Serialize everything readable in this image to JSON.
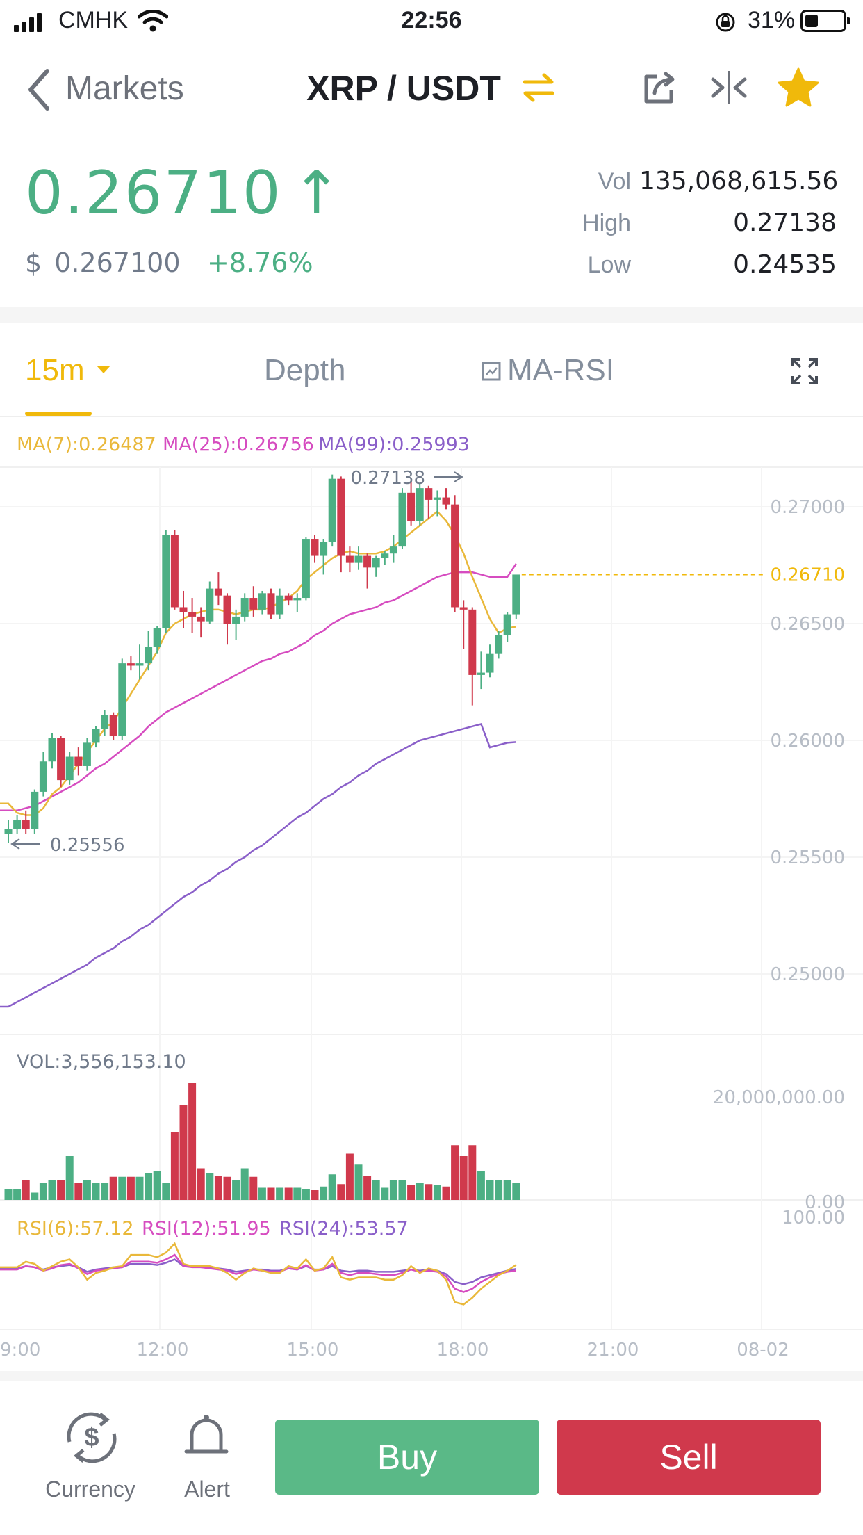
{
  "status_bar": {
    "carrier": "CMHK",
    "time": "22:56",
    "battery": "31%"
  },
  "nav": {
    "back_label": "Markets",
    "pair": "XRP / USDT"
  },
  "ticker": {
    "last_price": "0.26710",
    "usd_symbol": "$",
    "usd_price": "0.267100",
    "change": "+8.76%",
    "vol_label": "Vol",
    "vol_value": "135,068,615.56",
    "high_label": "High",
    "high_value": "0.27138",
    "low_label": "Low",
    "low_value": "0.24535"
  },
  "tabs": {
    "interval": "15m",
    "depth": "Depth",
    "indicator": "MA-RSI"
  },
  "indicators": {
    "ma7": "MA(7):0.26487",
    "ma25": "MA(25):0.26756",
    "ma99": "MA(99):0.25993",
    "vol": "VOL:3,556,153.10",
    "rsi6": "RSI(6):57.12",
    "rsi12": "RSI(12):51.95",
    "rsi24": "RSI(24):53.57"
  },
  "colors": {
    "up": "#4caf84",
    "down": "#d0394c",
    "accent": "#f0b90b",
    "ma7": "#e9b83a",
    "ma25": "#d64cc0",
    "ma99": "#8a5fc9"
  },
  "chart_data": {
    "type": "candlestick",
    "interval": "15m",
    "y_ticks": [
      "0.27000",
      "0.26500",
      "0.26000",
      "0.25500",
      "0.25000"
    ],
    "x_ticks": [
      "9:00",
      "12:00",
      "15:00",
      "18:00",
      "21:00",
      "08-02"
    ],
    "last_price_label": "0.26710",
    "max_label": "0.27138",
    "min_label": "0.25556",
    "volume_axis_labels": [
      "20,000,000.00",
      "0.00"
    ],
    "rsi_axis_label": "100.00",
    "candles": [
      [
        0.256,
        0.2566,
        0.2556,
        0.2562
      ],
      [
        0.2562,
        0.2568,
        0.256,
        0.2566
      ],
      [
        0.2566,
        0.257,
        0.256,
        0.2562
      ],
      [
        0.2562,
        0.2579,
        0.256,
        0.2578
      ],
      [
        0.2578,
        0.2595,
        0.2576,
        0.2591
      ],
      [
        0.2591,
        0.2603,
        0.2588,
        0.2601
      ],
      [
        0.2601,
        0.2602,
        0.258,
        0.2583
      ],
      [
        0.2583,
        0.2595,
        0.2581,
        0.2593
      ],
      [
        0.2593,
        0.2597,
        0.2585,
        0.2589
      ],
      [
        0.2589,
        0.2601,
        0.2587,
        0.2599
      ],
      [
        0.2599,
        0.2606,
        0.2597,
        0.2605
      ],
      [
        0.2605,
        0.2613,
        0.2602,
        0.2611
      ],
      [
        0.2611,
        0.2612,
        0.26,
        0.2602
      ],
      [
        0.2602,
        0.2635,
        0.26,
        0.2633
      ],
      [
        0.2633,
        0.2636,
        0.263,
        0.2632
      ],
      [
        0.2632,
        0.2641,
        0.2626,
        0.2633
      ],
      [
        0.2633,
        0.2647,
        0.263,
        0.264
      ],
      [
        0.264,
        0.2649,
        0.2637,
        0.2648
      ],
      [
        0.2648,
        0.269,
        0.2646,
        0.2688
      ],
      [
        0.2688,
        0.269,
        0.2656,
        0.2657
      ],
      [
        0.2657,
        0.2664,
        0.2648,
        0.2655
      ],
      [
        0.2655,
        0.2661,
        0.2646,
        0.2653
      ],
      [
        0.2653,
        0.2657,
        0.2644,
        0.2651
      ],
      [
        0.2651,
        0.2668,
        0.265,
        0.2665
      ],
      [
        0.2665,
        0.2672,
        0.2658,
        0.2662
      ],
      [
        0.2662,
        0.2663,
        0.2641,
        0.265
      ],
      [
        0.265,
        0.2656,
        0.2643,
        0.2653
      ],
      [
        0.2653,
        0.2663,
        0.2651,
        0.2661
      ],
      [
        0.2661,
        0.2666,
        0.2653,
        0.2656
      ],
      [
        0.2656,
        0.2664,
        0.2654,
        0.2663
      ],
      [
        0.2663,
        0.2665,
        0.2652,
        0.2654
      ],
      [
        0.2654,
        0.2665,
        0.2652,
        0.2662
      ],
      [
        0.2662,
        0.2663,
        0.2658,
        0.266
      ],
      [
        0.266,
        0.2663,
        0.2655,
        0.2661
      ],
      [
        0.2661,
        0.2687,
        0.266,
        0.2686
      ],
      [
        0.2686,
        0.2688,
        0.2676,
        0.2679
      ],
      [
        0.2679,
        0.2686,
        0.2671,
        0.2685
      ],
      [
        0.2685,
        0.27138,
        0.2683,
        0.2712
      ],
      [
        0.2712,
        0.2713,
        0.2672,
        0.2679
      ],
      [
        0.2679,
        0.2683,
        0.2672,
        0.2676
      ],
      [
        0.2676,
        0.2683,
        0.2673,
        0.2679
      ],
      [
        0.2679,
        0.268,
        0.2665,
        0.2674
      ],
      [
        0.2674,
        0.2679,
        0.267,
        0.2678
      ],
      [
        0.2678,
        0.2681,
        0.2675,
        0.268
      ],
      [
        0.268,
        0.2688,
        0.2676,
        0.2683
      ],
      [
        0.2683,
        0.2708,
        0.2682,
        0.2706
      ],
      [
        0.2706,
        0.2711,
        0.2692,
        0.2694
      ],
      [
        0.2694,
        0.271,
        0.2692,
        0.2708
      ],
      [
        0.2708,
        0.2709,
        0.2695,
        0.2703
      ],
      [
        0.2703,
        0.2707,
        0.2696,
        0.2704
      ],
      [
        0.2704,
        0.2708,
        0.2699,
        0.2701
      ],
      [
        0.2701,
        0.2705,
        0.2655,
        0.2657
      ],
      [
        0.2657,
        0.266,
        0.2639,
        0.2656
      ],
      [
        0.2656,
        0.2657,
        0.2615,
        0.2628
      ],
      [
        0.2628,
        0.2638,
        0.2622,
        0.2629
      ],
      [
        0.2629,
        0.2641,
        0.2627,
        0.2637
      ],
      [
        0.2637,
        0.2647,
        0.2635,
        0.2645
      ],
      [
        0.2645,
        0.2655,
        0.2642,
        0.2654
      ],
      [
        0.2654,
        0.2671,
        0.2652,
        0.2671
      ]
    ],
    "ma7": [
      0.2573,
      0.2569,
      0.2568,
      0.2568,
      0.2571,
      0.2577,
      0.258,
      0.2585,
      0.259,
      0.2595,
      0.26,
      0.2605,
      0.2608,
      0.2614,
      0.262,
      0.2626,
      0.2632,
      0.2638,
      0.2646,
      0.265,
      0.2652,
      0.2654,
      0.2655,
      0.2656,
      0.2656,
      0.2655,
      0.2654,
      0.2655,
      0.2656,
      0.2656,
      0.2657,
      0.2659,
      0.2661,
      0.2664,
      0.2669,
      0.2672,
      0.2675,
      0.2678,
      0.268,
      0.2681,
      0.268,
      0.268,
      0.268,
      0.2681,
      0.2683,
      0.2686,
      0.2689,
      0.2692,
      0.2695,
      0.2698,
      0.2694,
      0.2688,
      0.268,
      0.267,
      0.2661,
      0.2652,
      0.2646,
      0.2648,
      0.26487
    ],
    "ma25": [
      0.257,
      0.257,
      0.2571,
      0.2572,
      0.2574,
      0.2576,
      0.2578,
      0.258,
      0.2582,
      0.2585,
      0.2588,
      0.259,
      0.2593,
      0.2596,
      0.2599,
      0.2602,
      0.2606,
      0.2609,
      0.2612,
      0.2614,
      0.2616,
      0.2618,
      0.262,
      0.2622,
      0.2624,
      0.2626,
      0.2628,
      0.263,
      0.2632,
      0.2634,
      0.2635,
      0.2637,
      0.2638,
      0.264,
      0.2642,
      0.2645,
      0.2647,
      0.265,
      0.2652,
      0.2654,
      0.2655,
      0.2656,
      0.2657,
      0.2659,
      0.266,
      0.2662,
      0.2664,
      0.2666,
      0.2668,
      0.267,
      0.2671,
      0.2672,
      0.2672,
      0.2672,
      0.2671,
      0.267,
      0.267,
      0.267,
      0.26756
    ],
    "ma99": [
      0.2486,
      0.2488,
      0.249,
      0.2492,
      0.2494,
      0.2496,
      0.2498,
      0.25,
      0.2502,
      0.2504,
      0.2507,
      0.2509,
      0.2511,
      0.2514,
      0.2516,
      0.2519,
      0.2521,
      0.2524,
      0.2527,
      0.253,
      0.2533,
      0.2535,
      0.2538,
      0.254,
      0.2543,
      0.2545,
      0.2548,
      0.255,
      0.2553,
      0.2555,
      0.2558,
      0.2561,
      0.2564,
      0.2567,
      0.2569,
      0.2572,
      0.2575,
      0.2577,
      0.258,
      0.2582,
      0.2585,
      0.2587,
      0.259,
      0.2592,
      0.2594,
      0.2596,
      0.2598,
      0.26,
      0.2601,
      0.2602,
      0.2603,
      0.2604,
      0.2605,
      0.2606,
      0.2607,
      0.2597,
      0.2598,
      0.2599,
      0.25993
    ],
    "volume": [
      0.9,
      0.9,
      1.6,
      0.6,
      1.4,
      1.6,
      1.6,
      3.6,
      1.4,
      1.6,
      1.4,
      1.4,
      1.9,
      1.9,
      1.9,
      1.9,
      2.2,
      2.4,
      1.4,
      5.6,
      7.8,
      9.6,
      2.6,
      2.2,
      2.0,
      1.9,
      1.6,
      2.6,
      1.9,
      1.0,
      1.0,
      1.0,
      1.0,
      1.0,
      0.9,
      0.8,
      1.1,
      2.1,
      1.3,
      3.8,
      2.9,
      2.0,
      1.6,
      1.0,
      1.6,
      1.6,
      1.2,
      1.4,
      1.3,
      1.2,
      1.1,
      4.5,
      3.6,
      4.5,
      2.4,
      1.6,
      1.6,
      1.6,
      1.4
    ],
    "rsi6": [
      55,
      55,
      60,
      58,
      52,
      56,
      60,
      62,
      55,
      44,
      50,
      52,
      55,
      56,
      66,
      66,
      66,
      64,
      68,
      76,
      58,
      56,
      56,
      56,
      54,
      50,
      44,
      50,
      54,
      52,
      50,
      50,
      56,
      54,
      62,
      52,
      54,
      64,
      46,
      44,
      46,
      46,
      46,
      44,
      44,
      48,
      56,
      50,
      54,
      52,
      44,
      24,
      22,
      28,
      36,
      42,
      48,
      52,
      57.12
    ],
    "rsi12": [
      53,
      53,
      56,
      55,
      52,
      54,
      57,
      58,
      54,
      49,
      52,
      53,
      54,
      55,
      60,
      60,
      60,
      59,
      62,
      66,
      56,
      55,
      55,
      54,
      53,
      52,
      49,
      51,
      53,
      52,
      51,
      51,
      54,
      53,
      57,
      52,
      53,
      58,
      50,
      48,
      50,
      50,
      49,
      48,
      48,
      50,
      53,
      51,
      52,
      51,
      47,
      36,
      33,
      36,
      42,
      46,
      49,
      51,
      51.95
    ],
    "rsi24": [
      54,
      54,
      56,
      55,
      53,
      55,
      56,
      57,
      55,
      51,
      53,
      54,
      55,
      55,
      58,
      58,
      58,
      57,
      59,
      62,
      56,
      56,
      55,
      55,
      54,
      53,
      51,
      52,
      53,
      53,
      52,
      52,
      54,
      53,
      56,
      53,
      53,
      56,
      52,
      51,
      52,
      52,
      51,
      51,
      51,
      52,
      53,
      52,
      53,
      52,
      49,
      42,
      40,
      42,
      46,
      48,
      50,
      52,
      53.57
    ]
  },
  "bottom": {
    "currency_label": "Currency",
    "alert_label": "Alert",
    "buy_label": "Buy",
    "sell_label": "Sell"
  }
}
